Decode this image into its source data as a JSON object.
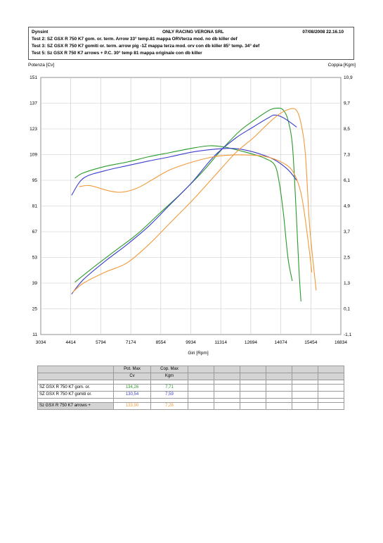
{
  "header": {
    "company": "Dynsint",
    "center_title": "ONLY RACING VERONA SRL",
    "datetime": "07/08/2008  22.16.10",
    "test2": "Test 2: SZ GSX R 750 K7 gom. or. term. Arrow 33° temp.81 mappa ORVterza mod. no db killer def",
    "test3": "Test 3: SZ GSX R 750 K7 gomiti or. term. arrow pig -1Z mappa terza mod. orv con db killer  85° temp. 34° def",
    "test5": "Test 5: Sz GSX R 750 K7 arrows + P.C. 30° temp 81 mappa originale con db killer"
  },
  "chart_data": {
    "type": "line",
    "xlabel": "Giri [Rpm]",
    "ylabel_left": "Potenza [Cv]",
    "ylabel_right": "Coppia [Kgm]",
    "x_ticks": [
      3034,
      4414,
      5794,
      7174,
      8554,
      9934,
      11314,
      12694,
      14074,
      15454,
      16834
    ],
    "y_left_ticks": [
      11,
      25,
      39,
      53,
      67,
      81,
      95,
      109,
      123,
      137,
      151
    ],
    "y_right_ticks": [
      "-1,1",
      "0,1",
      "1,3",
      "2,5",
      "3,7",
      "4,9",
      "6,1",
      "7,3",
      "8,5",
      "9,7",
      "10,9"
    ],
    "xlim": [
      3034,
      16834
    ],
    "ylim_left": [
      11,
      151
    ],
    "ylim_right": [
      -1.1,
      10.9
    ],
    "grid": true,
    "series": [
      {
        "name": "SZ GSX R 750 K7 gom. or.",
        "color": "#2a9a2a",
        "power": [
          [
            4600,
            39.5
          ],
          [
            5500,
            48
          ],
          [
            6500,
            57
          ],
          [
            7500,
            66
          ],
          [
            8500,
            77
          ],
          [
            9500,
            88
          ],
          [
            10500,
            100
          ],
          [
            11300,
            111
          ],
          [
            12200,
            122
          ],
          [
            13000,
            129
          ],
          [
            13600,
            133.5
          ],
          [
            14000,
            134.26
          ],
          [
            14200,
            133
          ],
          [
            14400,
            128
          ],
          [
            14600,
            115
          ],
          [
            14750,
            85
          ],
          [
            14900,
            48
          ],
          [
            15000,
            29
          ]
        ],
        "torque": [
          [
            4600,
            6.2
          ],
          [
            5000,
            6.45
          ],
          [
            6000,
            6.75
          ],
          [
            7000,
            6.95
          ],
          [
            8000,
            7.2
          ],
          [
            9000,
            7.4
          ],
          [
            10000,
            7.6
          ],
          [
            10800,
            7.71
          ],
          [
            11500,
            7.65
          ],
          [
            12200,
            7.48
          ],
          [
            12800,
            7.32
          ],
          [
            13400,
            7.1
          ],
          [
            13800,
            6.8
          ],
          [
            14000,
            6.0
          ],
          [
            14200,
            4.5
          ],
          [
            14400,
            2.5
          ],
          [
            14600,
            1.4
          ]
        ]
      },
      {
        "name": "SZ GSX R 750 K7 gomiti or.",
        "color": "#3c3ccc",
        "power": [
          [
            4450,
            33
          ],
          [
            5000,
            41
          ],
          [
            6000,
            51
          ],
          [
            7000,
            60
          ],
          [
            8000,
            70
          ],
          [
            9000,
            82
          ],
          [
            10000,
            94
          ],
          [
            11000,
            108
          ],
          [
            12000,
            118
          ],
          [
            12800,
            124
          ],
          [
            13500,
            129
          ],
          [
            13800,
            130.54
          ],
          [
            14200,
            129
          ],
          [
            14800,
            124
          ]
        ],
        "torque": [
          [
            4450,
            5.4
          ],
          [
            5000,
            6.2
          ],
          [
            6000,
            6.55
          ],
          [
            7000,
            6.78
          ],
          [
            8000,
            7.0
          ],
          [
            9000,
            7.2
          ],
          [
            10000,
            7.42
          ],
          [
            11000,
            7.55
          ],
          [
            11800,
            7.59
          ],
          [
            12500,
            7.5
          ],
          [
            13200,
            7.3
          ],
          [
            13800,
            7.05
          ],
          [
            14400,
            6.6
          ],
          [
            14800,
            6.1
          ]
        ]
      },
      {
        "name": "Sz GSX R 750 K7 arrows +",
        "color": "#f29a3a",
        "power": [
          [
            4500,
            34
          ],
          [
            5000,
            39
          ],
          [
            6000,
            45
          ],
          [
            7000,
            50
          ],
          [
            8000,
            60
          ],
          [
            9000,
            72
          ],
          [
            10000,
            84
          ],
          [
            11000,
            97
          ],
          [
            12000,
            110
          ],
          [
            12800,
            118
          ],
          [
            13500,
            126
          ],
          [
            14000,
            131
          ],
          [
            14500,
            133.9
          ],
          [
            14800,
            133
          ],
          [
            15000,
            126
          ],
          [
            15200,
            110
          ],
          [
            15400,
            70
          ],
          [
            15700,
            35
          ]
        ],
        "torque": [
          [
            4800,
            5.8
          ],
          [
            5300,
            5.85
          ],
          [
            6200,
            5.6
          ],
          [
            6800,
            5.55
          ],
          [
            7500,
            5.75
          ],
          [
            8200,
            6.15
          ],
          [
            9000,
            6.6
          ],
          [
            10000,
            6.95
          ],
          [
            11000,
            7.2
          ],
          [
            11800,
            7.28
          ],
          [
            12500,
            7.28
          ],
          [
            13300,
            7.22
          ],
          [
            14000,
            7.0
          ],
          [
            14600,
            6.55
          ],
          [
            15000,
            5.5
          ],
          [
            15300,
            3.5
          ],
          [
            15500,
            1.8
          ]
        ]
      }
    ]
  },
  "table": {
    "col_pot": "Pot. Max",
    "col_cop": "Cop. Max",
    "unit_pot": "Cv",
    "unit_cop": "Kgm",
    "rows": [
      {
        "name": "SZ GSX R 750 K7 gom. or.",
        "pot": "134,26",
        "cop": "7,71",
        "color": "#2a9a2a"
      },
      {
        "name": "SZ GSX R 750 K7 gomiti or.",
        "pot": "130,54",
        "cop": "7,59",
        "color": "#3c3ccc"
      },
      {
        "name": "Sz GSX R 750 K7 arrows +",
        "pot": "133,90",
        "cop": "7,28",
        "color": "#f29a3a"
      }
    ]
  }
}
